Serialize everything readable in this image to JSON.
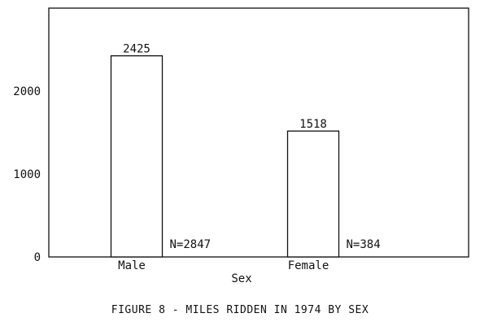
{
  "caption": "FIGURE 8 - MILES RIDDEN IN 1974 BY SEX",
  "chart_data": {
    "type": "bar",
    "title": "",
    "xlabel": "Sex",
    "ylabel": "",
    "categories": [
      "Male",
      "Female"
    ],
    "values": [
      2425,
      1518
    ],
    "data_labels": [
      "2425",
      "1518"
    ],
    "annotations": [
      "N=2847",
      "N=384"
    ],
    "ylim": [
      0,
      3000
    ],
    "yticks": [
      0,
      1000,
      2000
    ],
    "ytick_labels": [
      "0",
      "1000",
      "2000"
    ],
    "grid": false,
    "legend": "none"
  }
}
